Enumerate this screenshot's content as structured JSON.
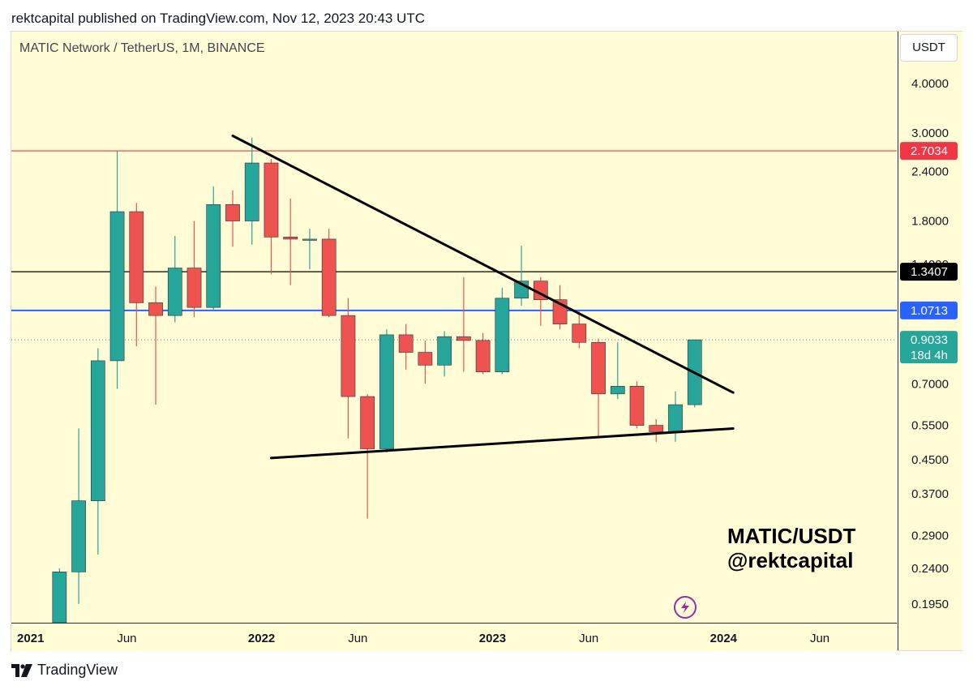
{
  "header": {
    "publisher_line": "rektcapital published on TradingView.com, Nov 12, 2023 20:43 UTC"
  },
  "symbol": {
    "title": "MATIC Network / TetherUS, 1M, BINANCE"
  },
  "currency_button": {
    "label": "USDT"
  },
  "watermark": {
    "line1": "MATIC/USDT",
    "line2": "@rektcapital"
  },
  "footer": {
    "brand": "TradingView"
  },
  "colors": {
    "background": "#fffcd6",
    "up": "#26a69a",
    "down": "#ef5350",
    "resistance": "#f23645",
    "level_blue": "#2962ff",
    "level_black": "#000000"
  },
  "icons": {
    "alert": "lightning-icon",
    "logo": "tradingview-logo-icon"
  },
  "chart_data": {
    "type": "candlestick",
    "interval": "1M",
    "y_scale": "log",
    "ylim": [
      0.175,
      5.4
    ],
    "xlim": [
      "2020-12",
      "2024-09"
    ],
    "y_ticks": [
      "4.0000",
      "3.0000",
      "2.4000",
      "1.8000",
      "1.4000",
      "0.7000",
      "0.5500",
      "0.4500",
      "0.3700",
      "0.2900",
      "0.2400",
      "0.1950"
    ],
    "x_ticks": [
      {
        "label": "2021",
        "bold": true,
        "month": "2021-01"
      },
      {
        "label": "Jun",
        "bold": false,
        "month": "2021-06"
      },
      {
        "label": "2022",
        "bold": true,
        "month": "2022-01"
      },
      {
        "label": "Jun",
        "bold": false,
        "month": "2022-06"
      },
      {
        "label": "2023",
        "bold": true,
        "month": "2023-01"
      },
      {
        "label": "Jun",
        "bold": false,
        "month": "2023-06"
      },
      {
        "label": "2024",
        "bold": true,
        "month": "2024-01"
      },
      {
        "label": "Jun",
        "bold": false,
        "month": "2024-06"
      }
    ],
    "candles": [
      {
        "t": "2021-02",
        "o": 0.043,
        "h": 0.24,
        "l": 0.04,
        "c": 0.235
      },
      {
        "t": "2021-03",
        "o": 0.235,
        "h": 0.54,
        "l": 0.195,
        "c": 0.355
      },
      {
        "t": "2021-04",
        "o": 0.355,
        "h": 0.86,
        "l": 0.26,
        "c": 0.8
      },
      {
        "t": "2021-05",
        "o": 0.8,
        "h": 2.7,
        "l": 0.68,
        "c": 1.9
      },
      {
        "t": "2021-06",
        "o": 1.9,
        "h": 2.0,
        "l": 0.87,
        "c": 1.12
      },
      {
        "t": "2021-07",
        "o": 1.12,
        "h": 1.23,
        "l": 0.62,
        "c": 1.04
      },
      {
        "t": "2021-08",
        "o": 1.04,
        "h": 1.65,
        "l": 1.0,
        "c": 1.37
      },
      {
        "t": "2021-09",
        "o": 1.37,
        "h": 1.8,
        "l": 1.03,
        "c": 1.09
      },
      {
        "t": "2021-10",
        "o": 1.09,
        "h": 2.2,
        "l": 1.07,
        "c": 1.98
      },
      {
        "t": "2021-11",
        "o": 1.98,
        "h": 2.15,
        "l": 1.55,
        "c": 1.8
      },
      {
        "t": "2021-12",
        "o": 1.8,
        "h": 2.92,
        "l": 1.57,
        "c": 2.52
      },
      {
        "t": "2022-01",
        "o": 2.52,
        "h": 2.58,
        "l": 1.32,
        "c": 1.64
      },
      {
        "t": "2022-02",
        "o": 1.64,
        "h": 2.05,
        "l": 1.24,
        "c": 1.62
      },
      {
        "t": "2022-03",
        "o": 1.62,
        "h": 1.72,
        "l": 1.36,
        "c": 1.62
      },
      {
        "t": "2022-04",
        "o": 1.62,
        "h": 1.72,
        "l": 1.03,
        "c": 1.04
      },
      {
        "t": "2022-05",
        "o": 1.04,
        "h": 1.15,
        "l": 0.51,
        "c": 0.65
      },
      {
        "t": "2022-06",
        "o": 0.65,
        "h": 0.66,
        "l": 0.32,
        "c": 0.48
      },
      {
        "t": "2022-07",
        "o": 0.48,
        "h": 0.96,
        "l": 0.47,
        "c": 0.93
      },
      {
        "t": "2022-08",
        "o": 0.93,
        "h": 0.99,
        "l": 0.76,
        "c": 0.84
      },
      {
        "t": "2022-09",
        "o": 0.84,
        "h": 0.9,
        "l": 0.7,
        "c": 0.78
      },
      {
        "t": "2022-10",
        "o": 0.78,
        "h": 0.95,
        "l": 0.73,
        "c": 0.92
      },
      {
        "t": "2022-11",
        "o": 0.92,
        "h": 1.3,
        "l": 0.75,
        "c": 0.9
      },
      {
        "t": "2022-12",
        "o": 0.9,
        "h": 0.94,
        "l": 0.74,
        "c": 0.75
      },
      {
        "t": "2023-01",
        "o": 0.75,
        "h": 1.22,
        "l": 0.74,
        "c": 1.15
      },
      {
        "t": "2023-02",
        "o": 1.15,
        "h": 1.56,
        "l": 1.1,
        "c": 1.27
      },
      {
        "t": "2023-03",
        "o": 1.27,
        "h": 1.3,
        "l": 0.98,
        "c": 1.14
      },
      {
        "t": "2023-04",
        "o": 1.14,
        "h": 1.24,
        "l": 0.96,
        "c": 0.99
      },
      {
        "t": "2023-05",
        "o": 0.99,
        "h": 1.07,
        "l": 0.86,
        "c": 0.89
      },
      {
        "t": "2023-06",
        "o": 0.89,
        "h": 0.91,
        "l": 0.51,
        "c": 0.66
      },
      {
        "t": "2023-07",
        "o": 0.66,
        "h": 0.89,
        "l": 0.64,
        "c": 0.69
      },
      {
        "t": "2023-08",
        "o": 0.69,
        "h": 0.71,
        "l": 0.54,
        "c": 0.55
      },
      {
        "t": "2023-09",
        "o": 0.55,
        "h": 0.57,
        "l": 0.5,
        "c": 0.53
      },
      {
        "t": "2023-10",
        "o": 0.53,
        "h": 0.67,
        "l": 0.5,
        "c": 0.62
      },
      {
        "t": "2023-11",
        "o": 0.62,
        "h": 0.9,
        "l": 0.61,
        "c": 0.9033
      }
    ],
    "horizontal_levels": [
      {
        "price": 2.7034,
        "label": "2.7034",
        "color": "#f23645",
        "style": "solid"
      },
      {
        "price": 1.3407,
        "label": "1.3407",
        "color": "#000000",
        "style": "solid"
      },
      {
        "price": 1.0713,
        "label": "1.0713",
        "color": "#2962ff",
        "style": "solid"
      },
      {
        "price": 0.9033,
        "label": "0.9033",
        "countdown": "18d 4h",
        "color": "#26a69a",
        "style": "dotted"
      }
    ],
    "trendlines": [
      {
        "name": "descending resistance",
        "from": {
          "t": "2021-11",
          "price": 2.95
        },
        "to": {
          "t": "2024-01",
          "price": 0.665
        }
      },
      {
        "name": "ascending support",
        "from": {
          "t": "2022-01",
          "price": 0.455
        },
        "to": {
          "t": "2024-01",
          "price": 0.54
        }
      }
    ]
  }
}
